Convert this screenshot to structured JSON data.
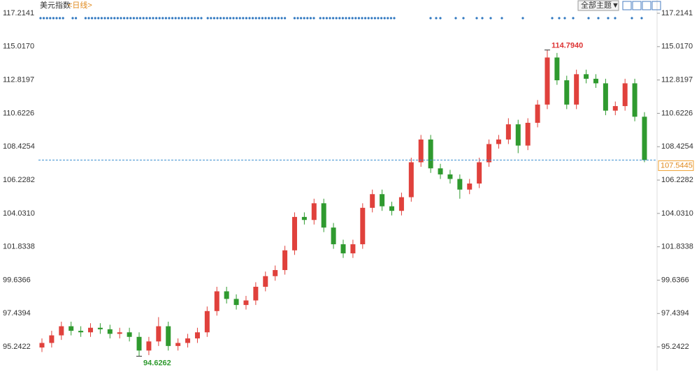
{
  "chart_data": {
    "type": "candlestick",
    "title": "美元指数",
    "period": "<日线>",
    "theme_button": "全部主题▼",
    "ylim": [
      94.19,
      117.72
    ],
    "yticks": [
      117.2141,
      {
        "value": 115.017,
        "label": "115.0170"
      },
      112.8197,
      110.6226,
      108.4254,
      106.2282,
      {
        "value": 104.031,
        "label": "104.0310"
      },
      101.8338,
      99.6366,
      97.4394,
      95.2422
    ],
    "open": [
      95.2,
      95.5,
      96.0,
      96.6,
      96.3,
      96.2,
      96.5,
      96.4,
      96.1,
      96.2,
      95.9,
      95.0,
      95.6,
      96.6,
      95.3,
      95.5,
      95.8,
      96.2,
      97.6,
      98.9,
      98.4,
      98.0,
      98.3,
      99.2,
      99.9,
      100.3,
      101.6,
      103.8,
      103.6,
      104.7,
      103.1,
      102.0,
      101.4,
      102.0,
      104.4,
      105.3,
      104.5,
      104.2,
      105.1,
      107.4,
      108.9,
      107.0,
      106.6,
      106.3,
      105.6,
      106.0,
      107.4,
      108.6,
      108.9,
      109.9,
      108.5,
      110.0,
      111.2,
      114.3,
      112.8,
      111.2,
      113.2,
      112.9,
      112.6,
      110.8,
      111.1,
      112.6,
      110.4
    ],
    "high": [
      95.8,
      96.3,
      96.9,
      96.9,
      96.6,
      96.8,
      96.8,
      96.7,
      96.5,
      96.5,
      96.2,
      95.9,
      97.2,
      96.9,
      95.8,
      96.1,
      96.5,
      97.9,
      99.2,
      99.2,
      98.7,
      98.6,
      99.5,
      100.2,
      100.6,
      101.9,
      104.1,
      104.1,
      105.0,
      105.0,
      103.4,
      102.3,
      102.3,
      104.7,
      105.6,
      105.6,
      104.8,
      105.4,
      107.7,
      109.2,
      109.2,
      107.3,
      106.9,
      106.6,
      106.3,
      107.7,
      108.9,
      109.2,
      110.3,
      110.2,
      110.3,
      111.5,
      114.794,
      114.6,
      113.1,
      113.5,
      113.5,
      113.2,
      112.9,
      111.4,
      112.9,
      112.9,
      110.7
    ],
    "low": [
      94.9,
      95.2,
      95.7,
      96.0,
      95.9,
      95.9,
      96.1,
      95.8,
      95.8,
      95.6,
      94.6262,
      94.7,
      95.3,
      95.0,
      95.0,
      95.2,
      95.5,
      95.9,
      97.3,
      98.1,
      97.7,
      97.7,
      98.0,
      98.9,
      99.6,
      100.0,
      101.3,
      103.3,
      103.3,
      102.8,
      101.7,
      101.1,
      101.1,
      101.7,
      104.1,
      104.2,
      103.9,
      103.9,
      104.8,
      107.1,
      106.7,
      106.3,
      106.0,
      105.0,
      105.3,
      105.7,
      107.1,
      108.3,
      108.6,
      108.0,
      108.2,
      109.7,
      110.9,
      112.5,
      110.9,
      110.9,
      112.6,
      112.3,
      110.5,
      110.5,
      110.8,
      110.1,
      107.4
    ],
    "close": [
      95.5,
      96.0,
      96.6,
      96.3,
      96.2,
      96.5,
      96.4,
      96.1,
      96.2,
      95.9,
      95.0,
      95.6,
      96.6,
      95.3,
      95.5,
      95.8,
      96.2,
      97.6,
      98.9,
      98.4,
      98.0,
      98.3,
      99.2,
      99.9,
      100.3,
      101.6,
      103.8,
      103.6,
      104.7,
      103.1,
      102.0,
      101.4,
      102.0,
      104.4,
      105.3,
      104.5,
      104.2,
      105.1,
      107.4,
      108.9,
      107.0,
      106.6,
      106.3,
      105.6,
      106.0,
      107.4,
      108.6,
      108.9,
      109.9,
      108.5,
      110.0,
      111.2,
      114.3,
      112.8,
      111.2,
      113.2,
      112.9,
      112.6,
      110.8,
      111.1,
      112.6,
      110.4,
      107.5445
    ],
    "up_color": "#e0413c",
    "down_color": "#2f9a2f",
    "high_label": {
      "value": 114.794,
      "label": "114.7940"
    },
    "low_label": 94.6262,
    "last_price": 107.5445
  }
}
